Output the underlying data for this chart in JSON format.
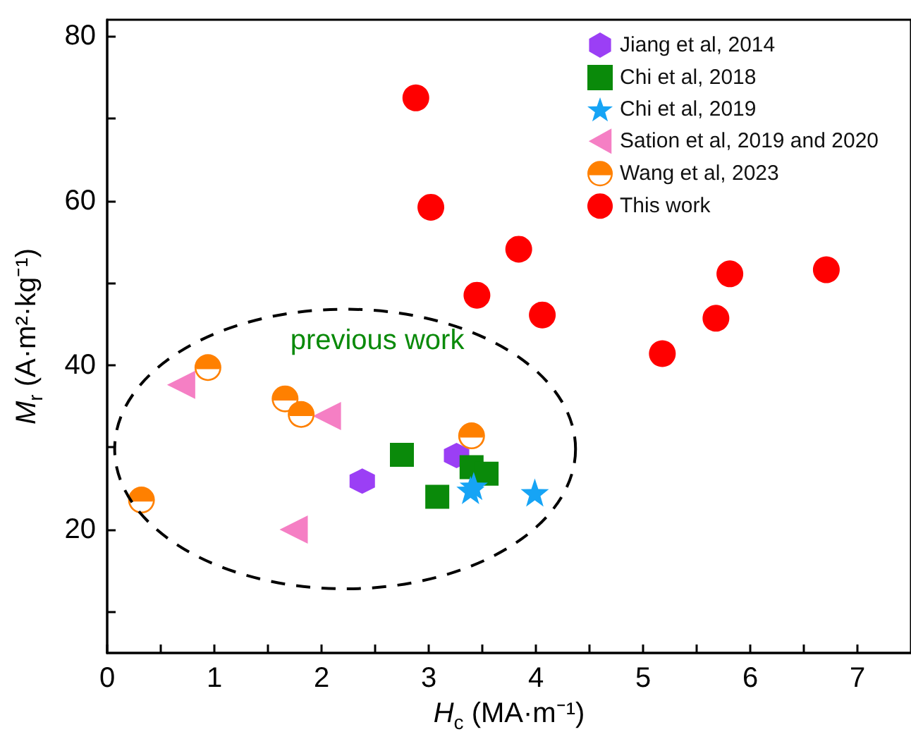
{
  "chart_data": {
    "type": "scatter",
    "xlabel": "H$_{c}$ (MA·m⁻¹)",
    "ylabel": "M$_{r}$ (A·m²·kg⁻¹)",
    "xlim": [
      0,
      7.5
    ],
    "ylim": [
      5,
      82
    ],
    "xticks": [
      0,
      {
        "value": 0.5,
        "label": null
      },
      1,
      {
        "value": 1.5,
        "label": null
      },
      2,
      {
        "value": 2.5,
        "label": null
      },
      3,
      {
        "value": 3.5,
        "label": null
      },
      4,
      {
        "value": 4.5,
        "label": null
      },
      5,
      {
        "value": 5.5,
        "label": null
      },
      6,
      {
        "value": 6.5,
        "label": null
      },
      7
    ],
    "yticks": [
      {
        "value": 10,
        "label": null
      },
      20,
      {
        "value": 30,
        "label": null
      },
      40,
      {
        "value": 50,
        "label": null
      },
      60,
      {
        "value": 70,
        "label": null
      },
      80
    ],
    "grid": false,
    "legend": "top right",
    "annotations": [
      "previous work"
    ],
    "series": [
      {
        "name": "Jiang et al, 2014",
        "color": "#9b3ff5",
        "x": [
          2.38,
          3.26
        ],
        "values": [
          25.9,
          29.0
        ]
      },
      {
        "name": "Chi et al, 2018",
        "color": "#0a8a0a",
        "marker": "square",
        "x": [
          2.75,
          3.08,
          3.4,
          3.54
        ],
        "values": [
          29.1,
          24.0,
          27.6,
          26.8
        ]
      },
      {
        "name": "Chi et al, 2019",
        "color": "#16a4f5",
        "marker": "star",
        "x": [
          3.39,
          3.42,
          3.99
        ],
        "values": [
          24.8,
          25.3,
          24.5
        ]
      },
      {
        "name": "Sation et al, 2019 and 2020",
        "color": "#f57fc4",
        "marker": "triangle-left",
        "x": [
          0.69,
          2.05,
          1.74
        ],
        "values": [
          37.6,
          33.8,
          20.0
        ]
      },
      {
        "name": "Wang et al, 2023",
        "color": "#ff8000",
        "marker": "half-circle",
        "x": [
          0.94,
          1.66,
          1.81,
          3.4,
          0.32
        ],
        "values": [
          39.7,
          35.9,
          34.0,
          31.4,
          23.6
        ]
      },
      {
        "name": "This work",
        "color": "#ff0000",
        "marker": "circle",
        "x": [
          2.88,
          3.02,
          3.84,
          3.45,
          4.06,
          5.81,
          6.71,
          5.68,
          5.18
        ],
        "values": [
          72.5,
          59.2,
          54.1,
          48.5,
          46.1,
          51.1,
          51.6,
          45.7,
          41.4
        ]
      }
    ]
  }
}
